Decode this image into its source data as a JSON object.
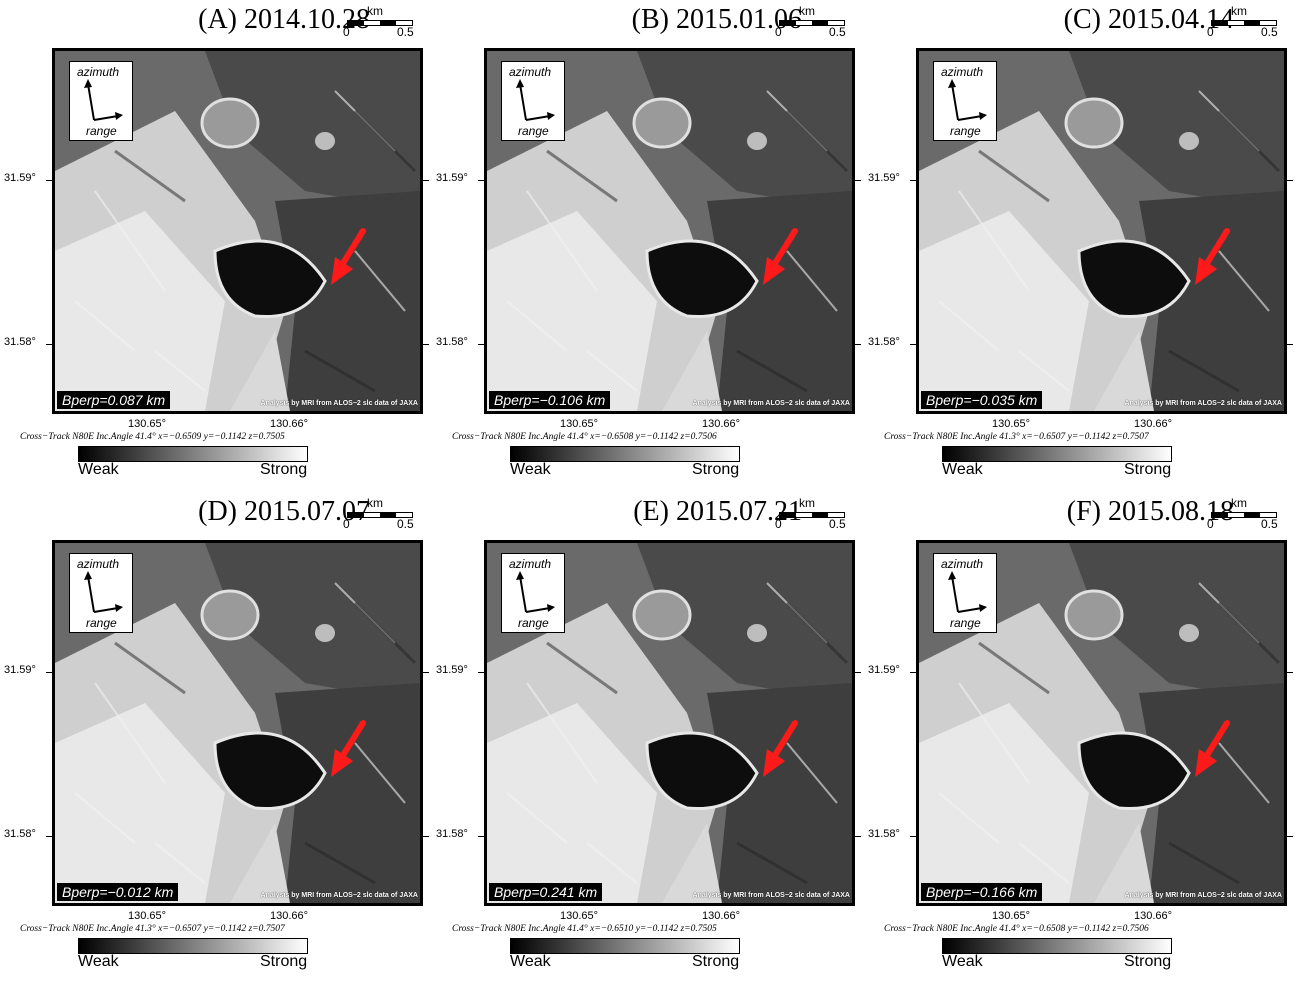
{
  "panels": [
    {
      "title": "(A) 2014.10.28",
      "bperp": "Bperp=0.087 km",
      "xtrack": "Cross−Track N80E  Inc.Angle 41.4°  x=−0.6509  y=−0.1142  z=0.7505"
    },
    {
      "title": "(B) 2015.01.06",
      "bperp": "Bperp=−0.106 km",
      "xtrack": "Cross−Track N80E  Inc.Angle 41.4°  x=−0.6508  y=−0.1142  z=0.7506"
    },
    {
      "title": "(C) 2015.04.14",
      "bperp": "Bperp=−0.035 km",
      "xtrack": "Cross−Track N80E  Inc.Angle 41.3°  x=−0.6507  y=−0.1142  z=0.7507"
    },
    {
      "title": "(D) 2015.07.07",
      "bperp": "Bperp=−0.012 km",
      "xtrack": "Cross−Track N80E  Inc.Angle 41.3°  x=−0.6507  y=−0.1142  z=0.7507"
    },
    {
      "title": "(E) 2015.07.21",
      "bperp": "Bperp=0.241 km",
      "xtrack": "Cross−Track N80E  Inc.Angle 41.4°  x=−0.6510  y=−0.1142  z=0.7505"
    },
    {
      "title": "(F) 2015.08.18",
      "bperp": "Bperp=−0.166 km",
      "xtrack": "Cross−Track N80E  Inc.Angle 41.4°  x=−0.6508  y=−0.1142  z=0.7506"
    }
  ],
  "common": {
    "scale_unit": "km",
    "scale_start": "0",
    "scale_end": "0.5",
    "azimuth_label": "azimuth",
    "range_label": "range",
    "credit": "Analysis by MRI from ALOS−2 slc data of JAXA",
    "lat_1": "31.59°",
    "lat_2": "31.58°",
    "lon_1": "130.65°",
    "lon_2": "130.66°",
    "colorbar_min": "Weak",
    "colorbar_max": "Strong"
  },
  "colors": {
    "arrow": "#ff1a1a",
    "background": "#ffffff"
  }
}
